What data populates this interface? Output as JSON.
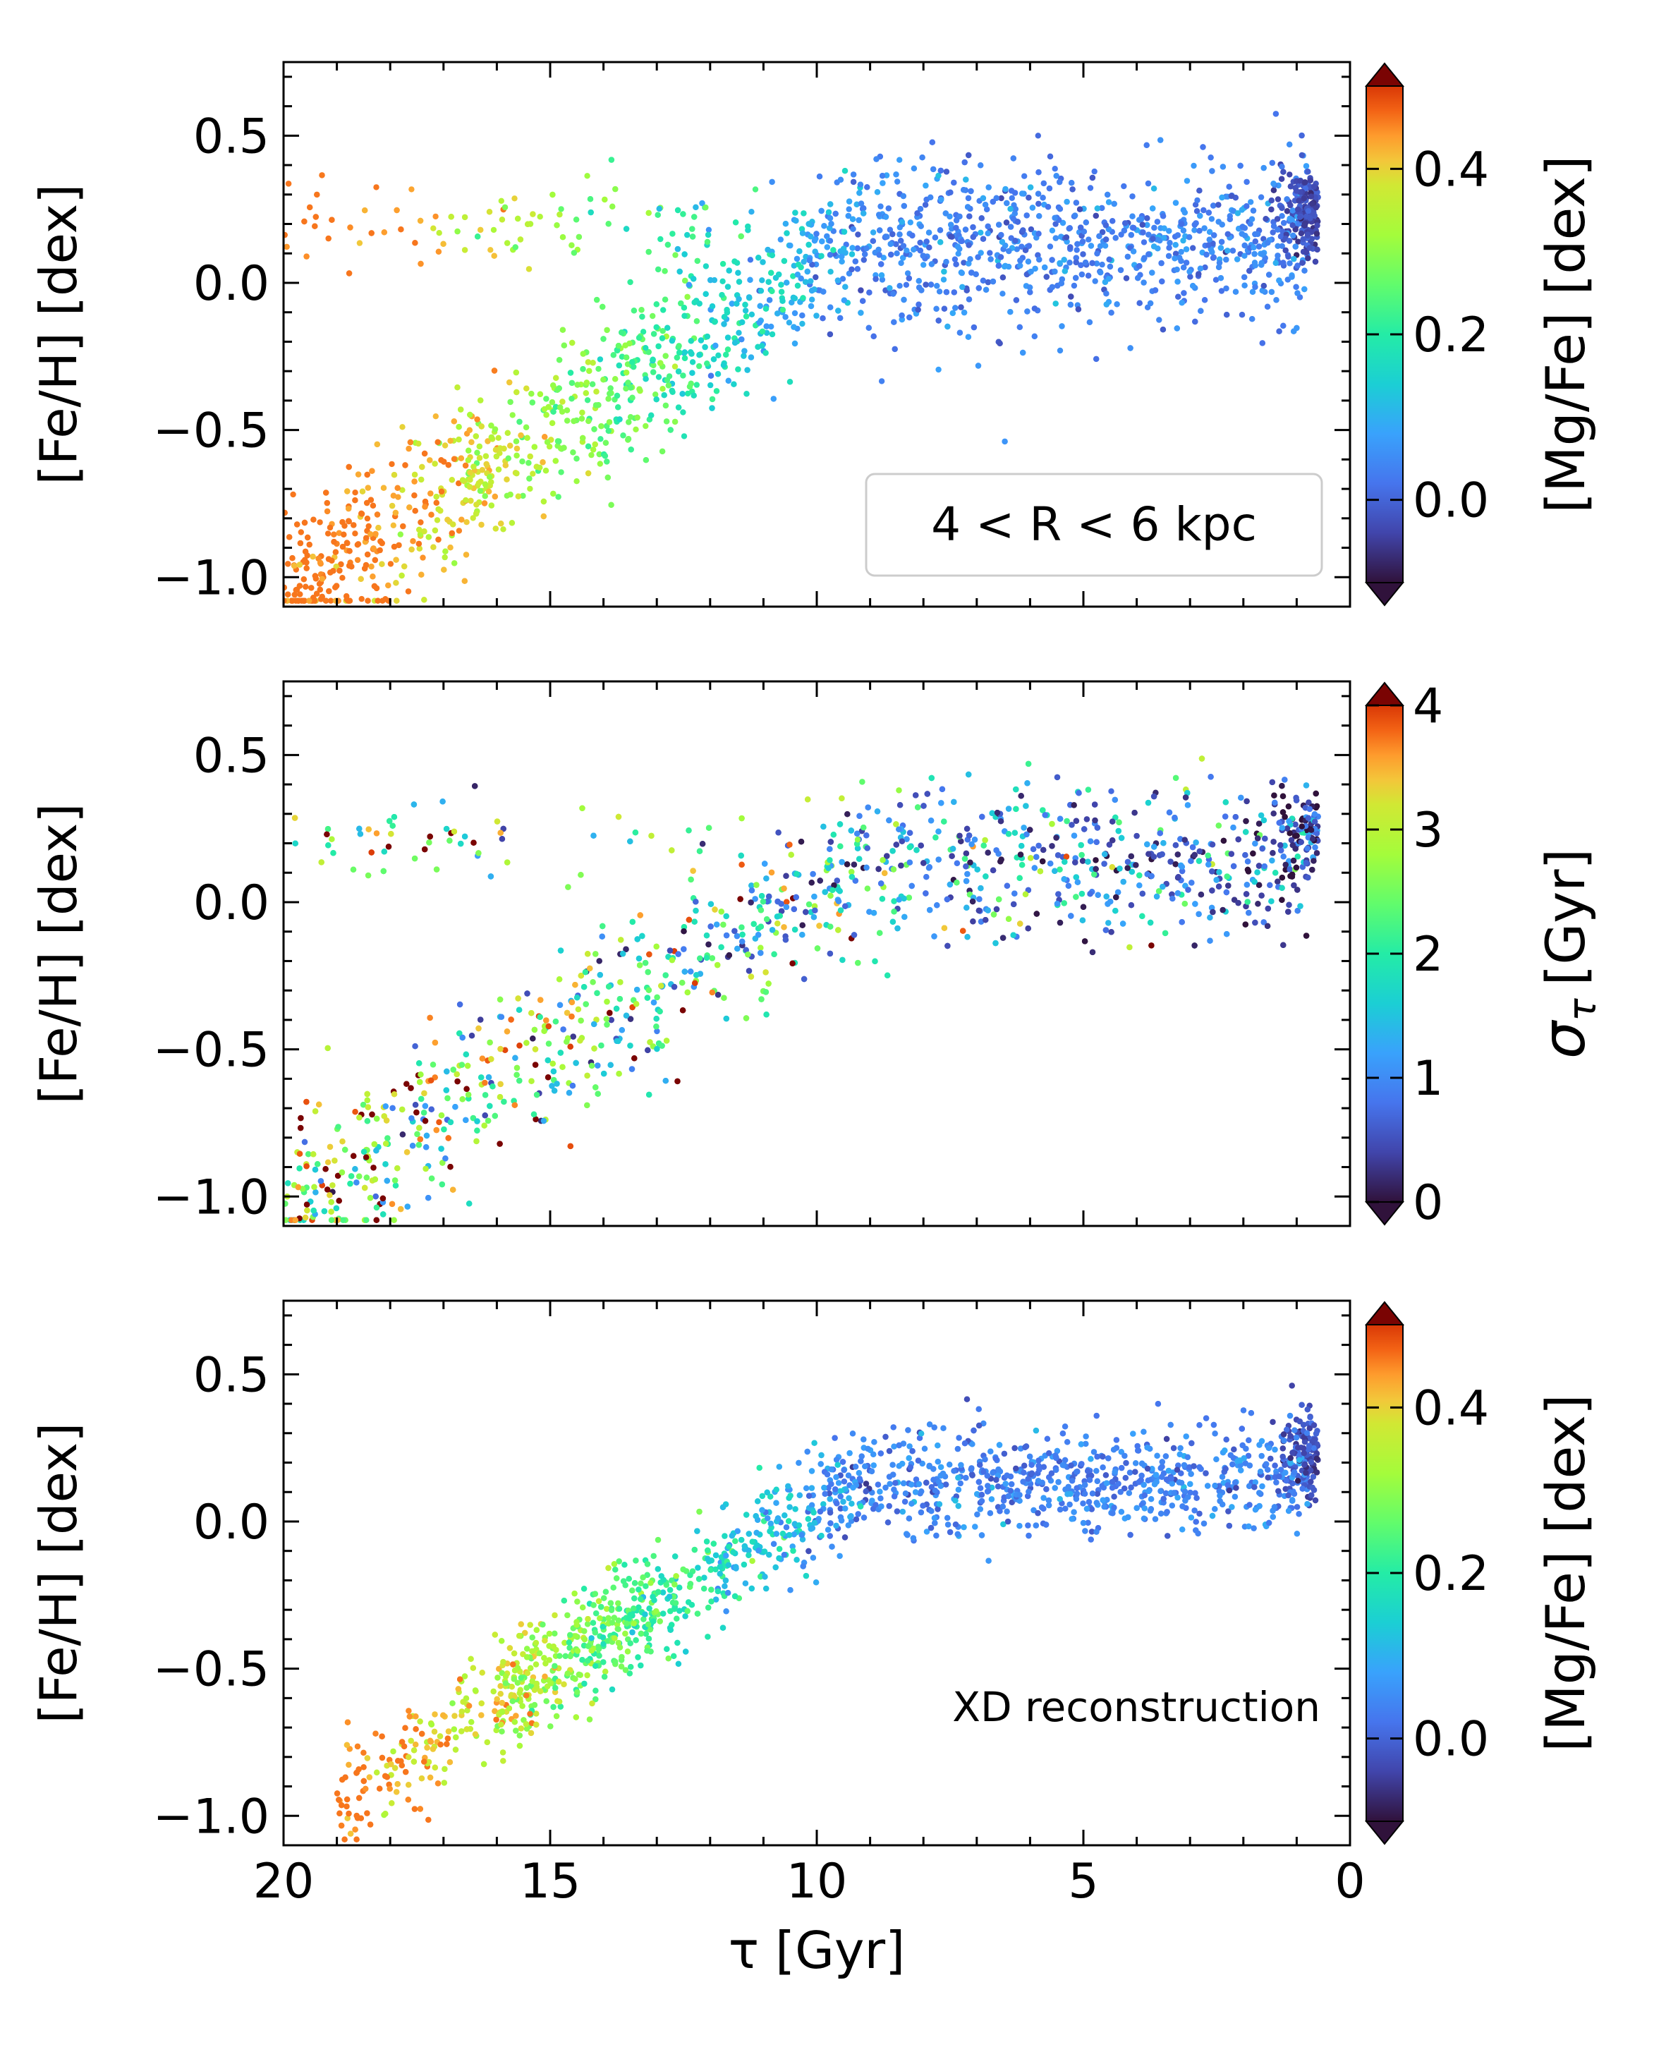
{
  "chart_data": [
    {
      "type": "scatter",
      "ylabel": "[Fe/H] [dex]",
      "xlim": [
        20,
        0
      ],
      "ylim": [
        -1.1,
        0.75
      ],
      "yticks": [
        -1.0,
        -0.5,
        0.0,
        0.5
      ],
      "ytick_labels": [
        "−1.0",
        "−0.5",
        "0.0",
        "0.5"
      ],
      "annotation": "4 < R < 6 kpc",
      "colorbar": {
        "label": "[Mg/Fe] [dex]",
        "range": [
          -0.1,
          0.5
        ],
        "ticks": [
          0.0,
          0.2,
          0.4
        ],
        "tick_labels": [
          "0.0",
          "0.2",
          "0.4"
        ],
        "colormap": "turbo"
      }
    },
    {
      "type": "scatter",
      "ylabel": "[Fe/H] [dex]",
      "xlim": [
        20,
        0
      ],
      "ylim": [
        -1.1,
        0.75
      ],
      "yticks": [
        -1.0,
        -0.5,
        0.0,
        0.5
      ],
      "ytick_labels": [
        "−1.0",
        "−0.5",
        "0.0",
        "0.5"
      ],
      "colorbar": {
        "label": "σ",
        "label_subscript": "τ",
        "label_unit": "[Gyr]",
        "range": [
          0,
          4
        ],
        "ticks": [
          0,
          1,
          2,
          3,
          4
        ],
        "tick_labels": [
          "0",
          "1",
          "2",
          "3",
          "4"
        ],
        "colormap": "turbo"
      }
    },
    {
      "type": "scatter",
      "ylabel": "[Fe/H] [dex]",
      "xlabel": "τ [Gyr]",
      "xlim": [
        20,
        0
      ],
      "ylim": [
        -1.1,
        0.75
      ],
      "xticks": [
        20,
        15,
        10,
        5,
        0
      ],
      "xtick_labels": [
        "20",
        "15",
        "10",
        "5",
        "0"
      ],
      "yticks": [
        -1.0,
        -0.5,
        0.0,
        0.5
      ],
      "ytick_labels": [
        "−1.0",
        "−0.5",
        "0.0",
        "0.5"
      ],
      "annotation": "XD reconstruction",
      "colorbar": {
        "label": "[Mg/Fe] [dex]",
        "range": [
          -0.1,
          0.5
        ],
        "ticks": [
          0.0,
          0.2,
          0.4
        ],
        "tick_labels": [
          "0.0",
          "0.2",
          "0.4"
        ],
        "colormap": "turbo"
      }
    }
  ]
}
